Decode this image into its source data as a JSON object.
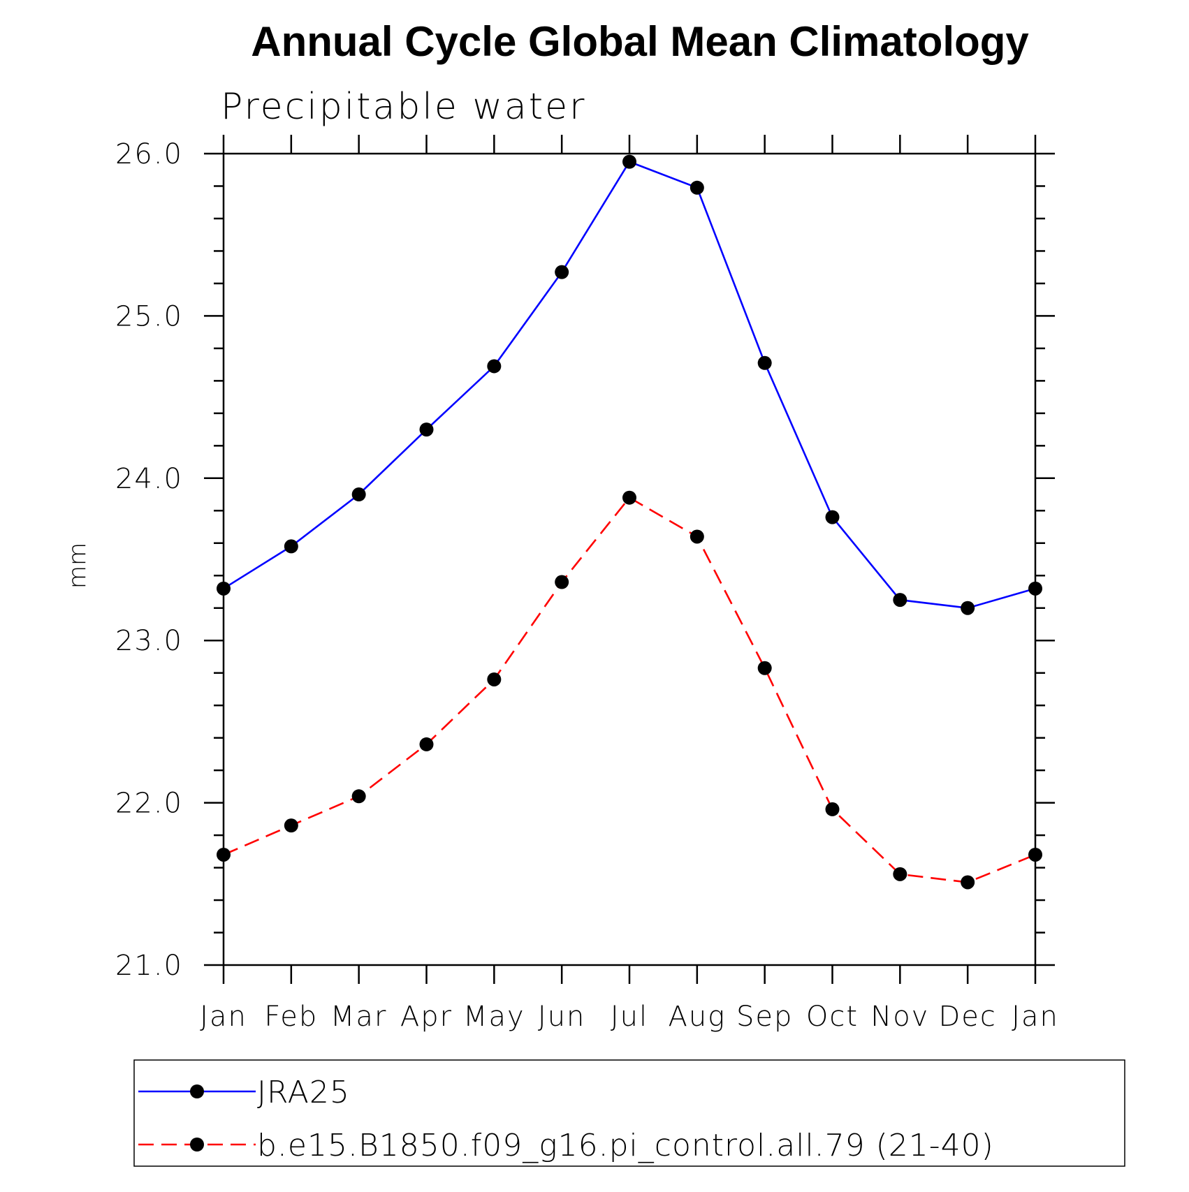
{
  "chart_data": {
    "type": "line",
    "title": "Annual Cycle Global Mean Climatology",
    "subtitle": "Precipitable water",
    "xlabel": "",
    "ylabel": "mm",
    "categories": [
      "Jan",
      "Feb",
      "Mar",
      "Apr",
      "May",
      "Jun",
      "Jul",
      "Aug",
      "Sep",
      "Oct",
      "Nov",
      "Dec",
      "Jan"
    ],
    "ylim": [
      21.0,
      26.0
    ],
    "yticks": [
      "21.0",
      "22.0",
      "23.0",
      "24.0",
      "25.0",
      "26.0"
    ],
    "grid": false,
    "legend_position": "bottom",
    "series": [
      {
        "name": "JRA25",
        "color": "#0000ff",
        "dash": "solid",
        "marker": "filled-circle",
        "values": [
          23.32,
          23.58,
          23.9,
          24.3,
          24.69,
          25.27,
          25.95,
          25.79,
          24.71,
          23.76,
          23.25,
          23.2,
          23.32
        ]
      },
      {
        "name": "b.e15.B1850.f09_g16.pi_control.all.79 (21-40)",
        "color": "#ff0000",
        "dash": "dashed",
        "marker": "filled-circle",
        "values": [
          21.68,
          21.86,
          22.04,
          22.36,
          22.76,
          23.36,
          23.88,
          23.64,
          22.83,
          21.96,
          21.56,
          21.51,
          21.68
        ]
      }
    ]
  }
}
